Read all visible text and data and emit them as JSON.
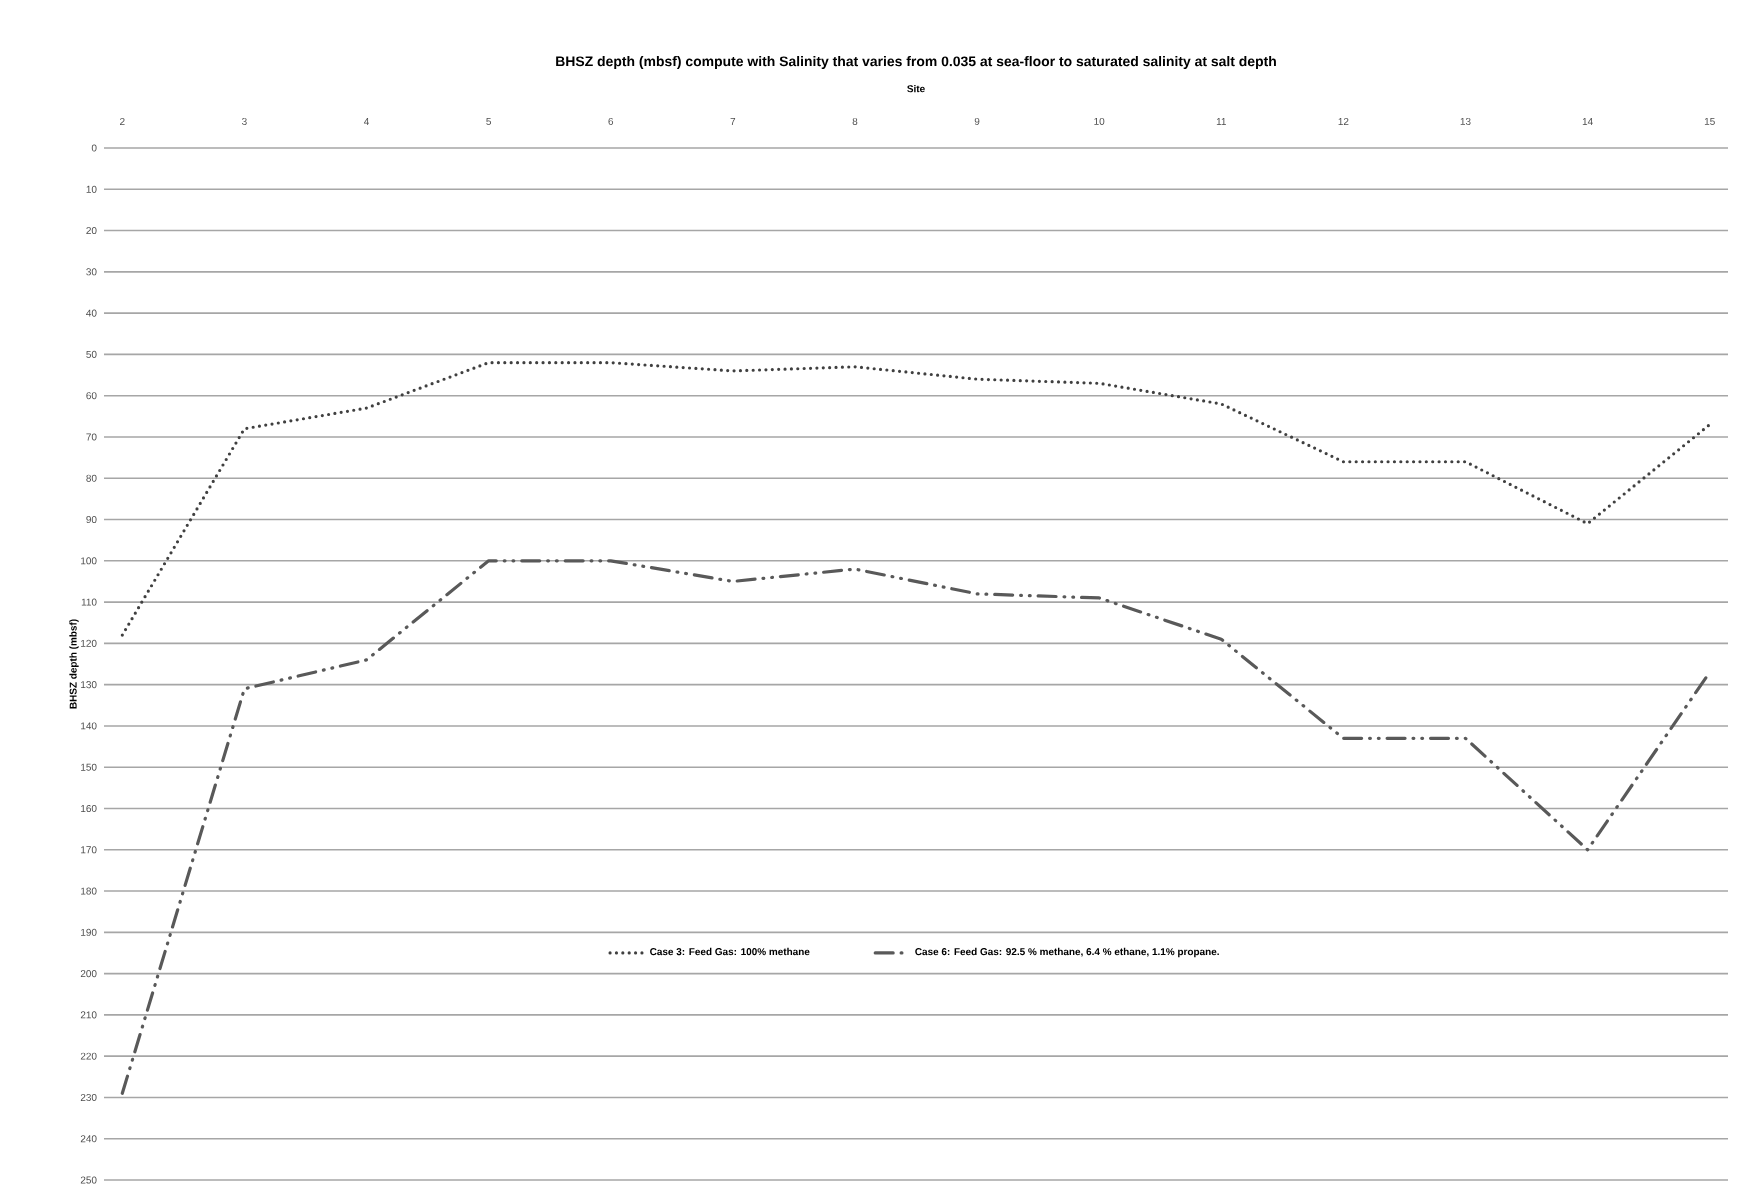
{
  "chart_data": {
    "type": "line",
    "title": "BHSZ depth (mbsf) compute with Salinity that varies from 0.035 at sea-floor to saturated salinity at salt depth",
    "xlabel": "Site",
    "ylabel": "BHSZ depth (mbsf)",
    "categories": [
      "2",
      "3",
      "4",
      "5",
      "6",
      "7",
      "8",
      "9",
      "10",
      "11",
      "12",
      "13",
      "14",
      "15"
    ],
    "series": [
      {
        "name": "Case 3: Feed Gas: 100% methane",
        "color": "#404040",
        "line_style": "dotted",
        "values": [
          118,
          68,
          63,
          52,
          52,
          54,
          53,
          56,
          57,
          62,
          76,
          76,
          91,
          67
        ]
      },
      {
        "name": "Case 6: Feed Gas: 92.5 % methane, 6.4 % ethane, 1.1%  propane.",
        "color": "#595959",
        "line_style": "dashdot",
        "values": [
          229,
          131,
          124,
          100,
          100,
          105,
          102,
          108,
          109,
          119,
          143,
          143,
          170,
          127
        ]
      }
    ],
    "ylim": [
      250,
      0
    ],
    "yticks": [
      0,
      10,
      20,
      30,
      40,
      50,
      60,
      70,
      80,
      90,
      100,
      110,
      120,
      130,
      140,
      150,
      160,
      170,
      180,
      190,
      200,
      210,
      220,
      230,
      240,
      250
    ],
    "grid": "y",
    "legend": "bottom",
    "marker": "none"
  }
}
